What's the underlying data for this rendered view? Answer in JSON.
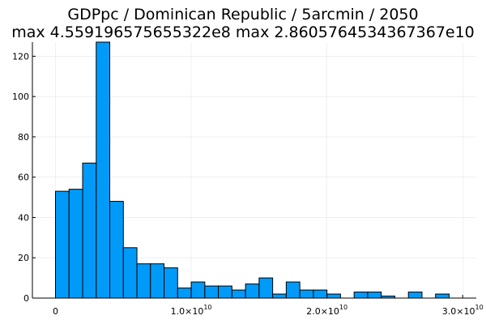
{
  "chart_data": {
    "type": "histogram",
    "title_line1": "GDPpc / Dominican Republic / 5arcmin / 2050",
    "title_line2": "max 4.559196575655322e8  max 2.8605764534367367e10",
    "xlabel": "",
    "ylabel": "",
    "bar_color": "#009af9",
    "grid": true,
    "legend": "none",
    "bin_width": 1000000000,
    "bin_start": 0,
    "counts": [
      53,
      54,
      67,
      127,
      48,
      25,
      17,
      17,
      15,
      5,
      8,
      6,
      6,
      4,
      7,
      10,
      2,
      8,
      4,
      4,
      2,
      0,
      3,
      3,
      1,
      0,
      3,
      0,
      2
    ],
    "xlim": [
      -1700000000,
      31000000000
    ],
    "ylim": [
      0,
      127
    ],
    "x_ticks": [
      {
        "value": 0,
        "mantissa": "0",
        "exponent": ""
      },
      {
        "value": 10000000000,
        "mantissa": "1.0×10",
        "exponent": "10"
      },
      {
        "value": 20000000000,
        "mantissa": "2.0×10",
        "exponent": "10"
      },
      {
        "value": 30000000000,
        "mantissa": "3.0×10",
        "exponent": "10"
      }
    ],
    "y_ticks": [
      0,
      20,
      40,
      60,
      80,
      100,
      120
    ]
  }
}
